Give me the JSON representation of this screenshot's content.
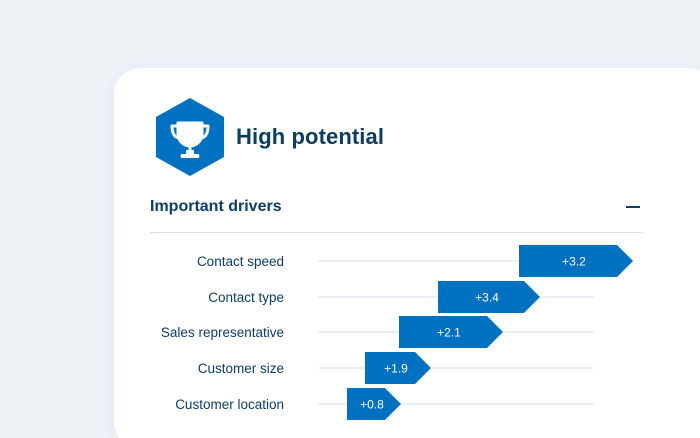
{
  "card": {
    "title": "High potential",
    "icon": "trophy-icon",
    "accent": "#0070c0",
    "title_color": "#0d3d63"
  },
  "drivers": {
    "heading": "Important drivers",
    "collapse_icon": "minus-icon"
  },
  "chart_data": {
    "type": "bar",
    "categories": [
      "Contact speed",
      "Contact type",
      "Sales representative",
      "Customer size",
      "Customer location"
    ],
    "values": [
      "+3.2",
      "+3.4",
      "+2.1",
      "+1.9",
      "+0.8"
    ],
    "bar_color": "#0070c0"
  }
}
